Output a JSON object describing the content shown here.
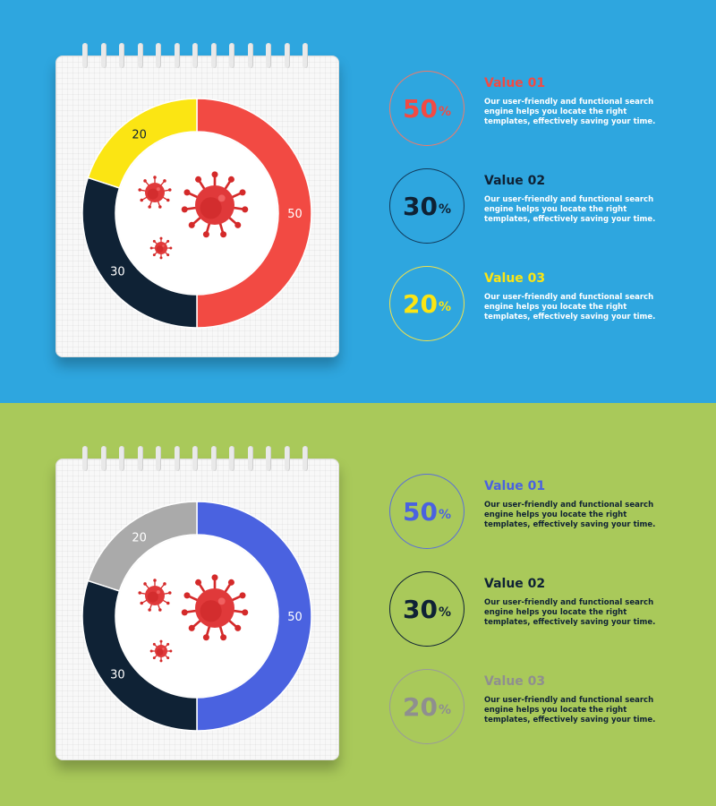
{
  "description_text": "Our user-friendly and functional search engine helps you locate the right templates, effectively saving your time.",
  "percent_symbol": "%",
  "chart_data": [
    {
      "type": "pie",
      "variant": "donut",
      "categories": [
        "Value 01",
        "Value 02",
        "Value 03"
      ],
      "values": [
        50,
        30,
        20
      ],
      "slice_labels": [
        "50",
        "30",
        "20"
      ],
      "colors": [
        "#f24a43",
        "#0f2235",
        "#fbe513"
      ],
      "legend": [
        {
          "title": "Value 01",
          "percent": "50",
          "title_color": "#f24a43",
          "percent_color": "#f24a43",
          "border_color": "#f07a6a"
        },
        {
          "title": "Value 02",
          "percent": "30",
          "title_color": "#0f2235",
          "percent_color": "#0f2235",
          "border_color": "#123a5a"
        },
        {
          "title": "Value 03",
          "percent": "20",
          "title_color": "#fbe513",
          "percent_color": "#fbe513",
          "border_color": "#f3e24a"
        }
      ]
    },
    {
      "type": "pie",
      "variant": "donut",
      "categories": [
        "Value 01",
        "Value 02",
        "Value 03"
      ],
      "values": [
        50,
        30,
        20
      ],
      "slice_labels": [
        "50",
        "30",
        "20"
      ],
      "colors": [
        "#4a62e0",
        "#0f2235",
        "#aaaaaa"
      ],
      "legend": [
        {
          "title": "Value 01",
          "percent": "50",
          "title_color": "#4a62e0",
          "percent_color": "#4a62e0",
          "border_color": "#5b6fd8"
        },
        {
          "title": "Value 02",
          "percent": "30",
          "title_color": "#0f2235",
          "percent_color": "#0f2235",
          "border_color": "#0f2235"
        },
        {
          "title": "Value 03",
          "percent": "20",
          "title_color": "#8f8f8f",
          "percent_color": "#8f8f8f",
          "border_color": "#9a9a9a"
        }
      ]
    }
  ],
  "icons": [
    "virus-icon"
  ]
}
